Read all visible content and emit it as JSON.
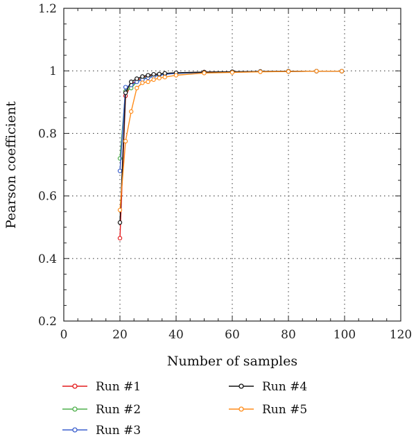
{
  "chart_data": {
    "type": "line",
    "xlabel": "Number of samples",
    "ylabel": "Pearson coefficient",
    "xlim": [
      0,
      120
    ],
    "ylim": [
      0.2,
      1.2
    ],
    "xticks": [
      0,
      20,
      40,
      60,
      80,
      100,
      120
    ],
    "yticks": [
      0.2,
      0.4,
      0.6,
      0.8,
      1,
      1.2
    ],
    "xtick_labels": [
      "0",
      "20",
      "40",
      "60",
      "80",
      "100",
      "120"
    ],
    "ytick_labels": [
      "0.2",
      "0.4",
      "0.6",
      "0.8",
      "1",
      "1.2"
    ],
    "grid": "dotted, at major ticks",
    "legend_position": "below plot, two columns",
    "series": [
      {
        "name": "Run #1",
        "color": "#e41a1c",
        "x": [
          20,
          22,
          24,
          26,
          28,
          30,
          32,
          34,
          36,
          40,
          50,
          60,
          70,
          80,
          90,
          99
        ],
        "y": [
          0.465,
          0.92,
          0.955,
          0.97,
          0.978,
          0.983,
          0.986,
          0.989,
          0.991,
          0.993,
          0.996,
          0.997,
          0.998,
          0.998,
          0.999,
          0.999
        ]
      },
      {
        "name": "Run #2",
        "color": "#4daf4a",
        "x": [
          20,
          22,
          24,
          26,
          28,
          30,
          32,
          34,
          36,
          40,
          50,
          60,
          70,
          80,
          90,
          99
        ],
        "y": [
          0.72,
          0.935,
          0.945,
          0.965,
          0.975,
          0.98,
          0.984,
          0.987,
          0.99,
          0.992,
          0.995,
          0.997,
          0.998,
          0.998,
          0.999,
          0.999
        ]
      },
      {
        "name": "Run #3",
        "color": "#3a5fcd",
        "x": [
          20,
          22,
          24,
          26,
          28,
          30,
          32,
          34,
          36,
          40,
          50,
          60,
          70,
          80,
          90,
          99
        ],
        "y": [
          0.68,
          0.948,
          0.955,
          0.965,
          0.972,
          0.978,
          0.982,
          0.986,
          0.989,
          0.992,
          0.995,
          0.997,
          0.998,
          0.998,
          0.999,
          0.999
        ]
      },
      {
        "name": "Run #4",
        "color": "#111111",
        "x": [
          20,
          22,
          24,
          26,
          28,
          30,
          32,
          34,
          36,
          40,
          50,
          60,
          70,
          80,
          90,
          99
        ],
        "y": [
          0.515,
          0.93,
          0.965,
          0.975,
          0.982,
          0.986,
          0.989,
          0.99,
          0.992,
          0.994,
          0.996,
          0.997,
          0.998,
          0.999,
          0.999,
          0.999
        ]
      },
      {
        "name": "Run #5",
        "color": "#ff8c1a",
        "x": [
          20,
          22,
          24,
          26,
          28,
          30,
          32,
          34,
          36,
          40,
          50,
          60,
          70,
          80,
          90,
          99
        ],
        "y": [
          0.555,
          0.775,
          0.87,
          0.945,
          0.962,
          0.965,
          0.972,
          0.977,
          0.98,
          0.986,
          0.993,
          0.995,
          0.997,
          0.998,
          0.999,
          0.999
        ]
      }
    ]
  }
}
